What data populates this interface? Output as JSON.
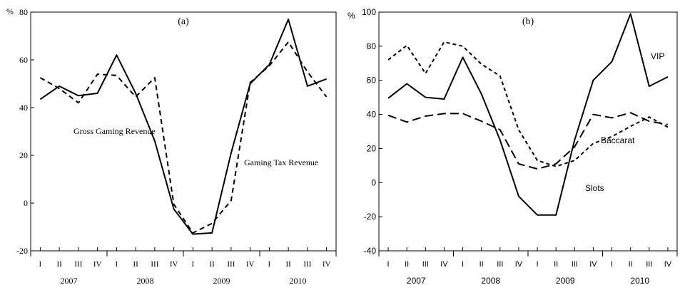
{
  "chart_data": [
    {
      "panel_label": "(a)",
      "type": "line",
      "y_unit_label": "%",
      "ylim": [
        -20,
        80
      ],
      "y_ticks": [
        -20,
        0,
        20,
        40,
        60,
        80
      ],
      "quarter_labels": [
        "I",
        "II",
        "III",
        "IV",
        "I",
        "II",
        "III",
        "IV",
        "I",
        "II",
        "III",
        "IV",
        "I",
        "II",
        "III",
        "IV"
      ],
      "years": [
        "2007",
        "2008",
        "2009",
        "2010"
      ],
      "grid": false,
      "series": [
        {
          "name": "Gross Gaming Revenue",
          "style": "solid",
          "values": [
            43.5,
            49,
            45,
            46,
            62,
            46,
            26,
            -2.5,
            -13,
            -12.5,
            21,
            50,
            58,
            77,
            49,
            52
          ]
        },
        {
          "name": "Gaming Tax Revenue",
          "style": "dashed",
          "values": [
            52.5,
            48,
            42,
            54,
            53.5,
            44.5,
            52.5,
            -0.5,
            -12.5,
            -8.5,
            1,
            50.5,
            57.5,
            67.5,
            55,
            44.5
          ]
        }
      ]
    },
    {
      "panel_label": "(b)",
      "type": "line",
      "y_unit_label": "%",
      "ylim": [
        -40,
        100
      ],
      "y_ticks": [
        -40,
        -20,
        0,
        20,
        40,
        60,
        80,
        100
      ],
      "quarter_labels": [
        "I",
        "II",
        "III",
        "IV",
        "I",
        "II",
        "III",
        "IV",
        "I",
        "II",
        "III",
        "IV",
        "I",
        "II",
        "III",
        "IV"
      ],
      "years": [
        "2007",
        "2008",
        "2009",
        "2010"
      ],
      "grid": false,
      "series": [
        {
          "name": "VIP",
          "style": "solid",
          "values": [
            49.5,
            58,
            50,
            49,
            73.5,
            52,
            25,
            -8,
            -19,
            -19,
            25,
            60,
            71,
            99,
            56.5,
            62
          ]
        },
        {
          "name": "Baccarat",
          "style": "longdash",
          "values": [
            39.5,
            35.5,
            39,
            40.5,
            40.5,
            36,
            31,
            11,
            8,
            11,
            21,
            40,
            38,
            41,
            36,
            34
          ]
        },
        {
          "name": "Slots",
          "style": "shortdash",
          "values": [
            72,
            80.5,
            64,
            82.5,
            80,
            69.5,
            62.5,
            31,
            13,
            9.5,
            13,
            23,
            27,
            33,
            38.5,
            32.5
          ]
        }
      ]
    }
  ]
}
